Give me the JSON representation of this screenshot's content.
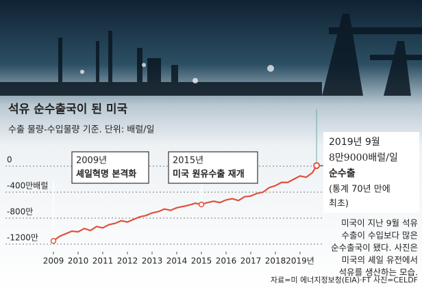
{
  "chart_data": {
    "type": "line",
    "title": "석유 순수출국이 된 미국",
    "subtitle": "수출 물량-수입물량 기준. 단위: 배럴/일",
    "x": [
      2009.0,
      2009.25,
      2009.5,
      2009.75,
      2010.0,
      2010.25,
      2010.5,
      2010.75,
      2011.0,
      2011.25,
      2011.5,
      2011.75,
      2012.0,
      2012.25,
      2012.5,
      2012.75,
      2013.0,
      2013.25,
      2013.5,
      2013.75,
      2014.0,
      2014.25,
      2014.5,
      2014.75,
      2015.0,
      2015.25,
      2015.5,
      2015.75,
      2016.0,
      2016.25,
      2016.5,
      2016.75,
      2017.0,
      2017.25,
      2017.5,
      2017.75,
      2018.0,
      2018.25,
      2018.5,
      2018.75,
      2019.0,
      2019.25,
      2019.5,
      2019.67
    ],
    "series": [
      {
        "name": "순수출",
        "color": "#e0503a",
        "values": [
          -1150,
          -1080,
          -1040,
          -1000,
          -1010,
          -960,
          -990,
          -930,
          -950,
          -900,
          -880,
          -840,
          -860,
          -820,
          -780,
          -760,
          -720,
          -700,
          -660,
          -680,
          -640,
          -620,
          -600,
          -570,
          -590,
          -560,
          -540,
          -560,
          -520,
          -500,
          -530,
          -470,
          -460,
          -420,
          -400,
          -330,
          -300,
          -250,
          -250,
          -200,
          -150,
          -170,
          -100,
          8.9
        ]
      }
    ],
    "xlim": [
      2009,
      2019.8
    ],
    "xticks": [
      2009,
      2010,
      2011,
      2012,
      2013,
      2014,
      2015,
      2016,
      2017,
      2018,
      {
        "value": 2019,
        "label": "2019년"
      }
    ],
    "ylim": [
      -1250,
      100
    ],
    "yticks": [
      0,
      {
        "value": -400,
        "label": "-400만배럴"
      },
      {
        "value": -800,
        "label": "-800만"
      },
      {
        "value": -1200,
        "label": "-1200만"
      }
    ],
    "grid": true,
    "annotations": [
      {
        "year": "2009년",
        "text": "셰일혁명 본격화"
      },
      {
        "year": "2015년",
        "text": "미국 원유수출 재개"
      }
    ],
    "callout": {
      "date": "2019년 9월",
      "amount": "8만9000배럴/일",
      "label": "순수출",
      "note_lines": [
        "(통계 70년 만에",
        "최초)"
      ]
    },
    "caption_lines": [
      "미국이 지난 9월 석유",
      "수출이 수입보다 많은",
      "순수출국이 됐다. 사진은",
      "미국의 셰일 유전에서",
      "석유를 생산하는 모습."
    ],
    "source": "자료=미 에너지정보청(EIA)·FT 사진=CELDF"
  }
}
